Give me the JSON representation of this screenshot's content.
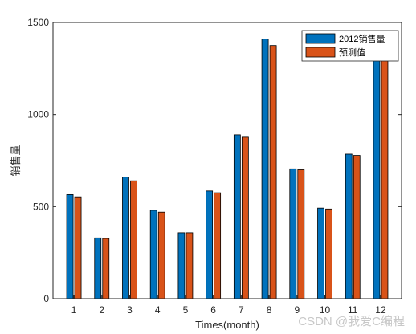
{
  "chart_data": {
    "type": "bar",
    "categories": [
      "1",
      "2",
      "3",
      "4",
      "5",
      "6",
      "7",
      "8",
      "9",
      "10",
      "11",
      "12"
    ],
    "series": [
      {
        "name": "2012销售量",
        "color": "#0072BD",
        "values": [
          565,
          330,
          660,
          480,
          358,
          585,
          890,
          1410,
          705,
          492,
          785,
          1340
        ]
      },
      {
        "name": "预测值",
        "color": "#D95319",
        "values": [
          553,
          327,
          640,
          470,
          358,
          575,
          877,
          1375,
          700,
          487,
          778,
          1318
        ]
      }
    ],
    "title": "",
    "xlabel": "Times(month)",
    "ylabel": "销售量",
    "ylim": [
      0,
      1500
    ],
    "yticks": [
      0,
      500,
      1000,
      1500
    ],
    "grid": false,
    "legend_position": "top-right"
  },
  "watermark": "CSDN @我爱C编程"
}
